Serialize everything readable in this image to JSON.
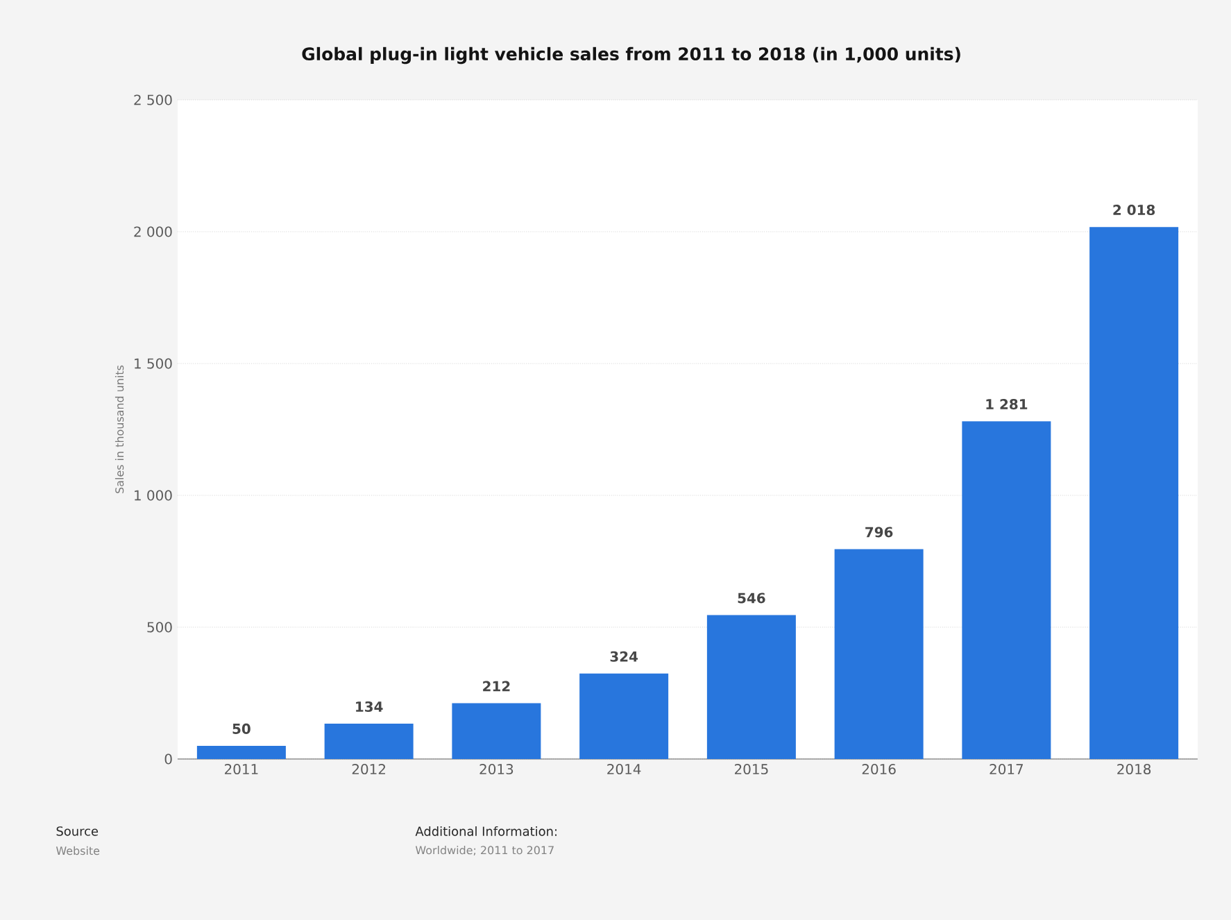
{
  "chart_data": {
    "type": "bar",
    "title": "Global plug-in light vehicle sales from 2011 to 2018 (in 1,000 units)",
    "ylabel": "Sales in thousand units",
    "categories": [
      "2011",
      "2012",
      "2013",
      "2014",
      "2015",
      "2016",
      "2017",
      "2018"
    ],
    "values": [
      50,
      134,
      212,
      324,
      546,
      796,
      1281,
      2018
    ],
    "value_labels": [
      "50",
      "134",
      "212",
      "324",
      "546",
      "796",
      "1 281",
      "2 018"
    ],
    "color": "#2876dd",
    "ylim": [
      0,
      2500
    ],
    "yticks": [
      0,
      500,
      {
        "value": 1000,
        "label": "1 000"
      },
      {
        "value": 1500,
        "label": "1 500"
      },
      {
        "value": 2000,
        "label": "2 000"
      },
      {
        "value": 2500,
        "label": "2 500"
      }
    ],
    "grid": "y",
    "annotations": [
      "Source",
      "Website",
      "Additional Information:",
      "Worldwide; 2011 to 2017"
    ]
  }
}
